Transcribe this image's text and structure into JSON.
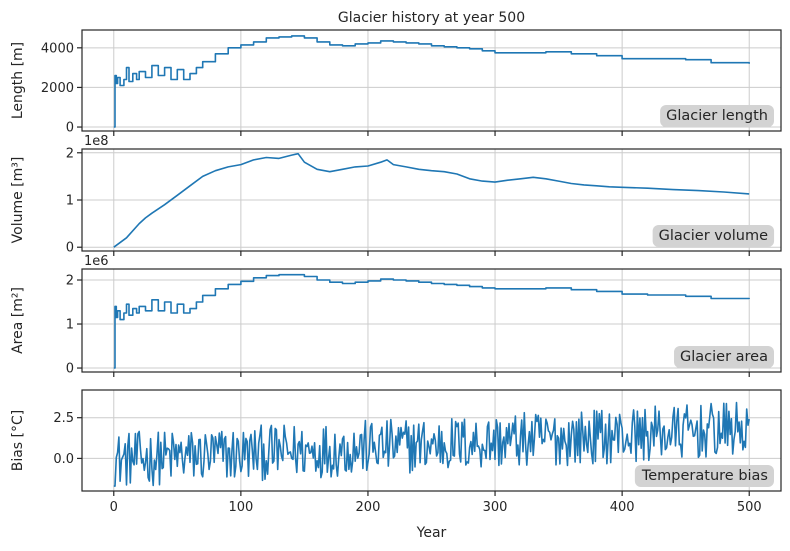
{
  "figure": {
    "title": "Glacier history at year 500",
    "xlabel": "Year",
    "x_ticks": [
      0,
      100,
      200,
      300,
      400,
      500
    ],
    "xlim": [
      -25,
      525
    ],
    "line_color": "#1f77b4",
    "grid_color": "#cccccc",
    "badge_color": "#d3d3d3"
  },
  "chart_data": [
    {
      "type": "line",
      "panel": "length",
      "badge": "Glacier length",
      "ylabel": "Length [m]",
      "ylim": [
        -200,
        4900
      ],
      "yticks": [
        0,
        2000,
        4000
      ],
      "ytick_labels": [
        "0",
        "2000",
        "4000"
      ],
      "offset_label": "",
      "grid": true,
      "style": "step",
      "x": [
        0,
        1,
        2,
        3,
        5,
        8,
        10,
        12,
        15,
        18,
        20,
        25,
        30,
        35,
        40,
        45,
        50,
        55,
        60,
        65,
        70,
        80,
        90,
        100,
        110,
        120,
        130,
        140,
        150,
        160,
        170,
        180,
        190,
        200,
        210,
        220,
        230,
        240,
        250,
        260,
        270,
        280,
        290,
        300,
        320,
        340,
        360,
        380,
        400,
        420,
        450,
        470,
        500
      ],
      "y": [
        0,
        2600,
        2200,
        2500,
        2100,
        2400,
        3000,
        2300,
        2700,
        2400,
        2800,
        2500,
        3100,
        2600,
        3000,
        2400,
        2900,
        2400,
        2700,
        3000,
        3300,
        3700,
        4000,
        4150,
        4300,
        4500,
        4550,
        4600,
        4500,
        4300,
        4150,
        4100,
        4200,
        4250,
        4350,
        4300,
        4250,
        4200,
        4100,
        4050,
        4000,
        3950,
        3850,
        3750,
        3750,
        3800,
        3700,
        3600,
        3450,
        3450,
        3400,
        3250,
        3200
      ]
    },
    {
      "type": "line",
      "panel": "volume",
      "badge": "Glacier volume",
      "ylabel": "Volume [m³]",
      "ylim": [
        -0.08,
        2.08
      ],
      "yticks": [
        0,
        1,
        2
      ],
      "ytick_labels": [
        "0",
        "1",
        "2"
      ],
      "offset_label": "1e8",
      "grid": true,
      "style": "line",
      "x": [
        0,
        10,
        20,
        25,
        30,
        40,
        50,
        60,
        70,
        80,
        90,
        100,
        110,
        120,
        130,
        140,
        145,
        150,
        160,
        170,
        180,
        190,
        200,
        210,
        215,
        220,
        230,
        240,
        250,
        260,
        270,
        280,
        290,
        300,
        310,
        320,
        330,
        340,
        350,
        360,
        370,
        380,
        390,
        400,
        420,
        440,
        460,
        480,
        500
      ],
      "y": [
        0,
        0.2,
        0.5,
        0.62,
        0.72,
        0.9,
        1.1,
        1.3,
        1.5,
        1.62,
        1.7,
        1.75,
        1.85,
        1.9,
        1.88,
        1.95,
        1.98,
        1.8,
        1.65,
        1.6,
        1.65,
        1.7,
        1.72,
        1.8,
        1.85,
        1.75,
        1.7,
        1.65,
        1.62,
        1.6,
        1.55,
        1.45,
        1.4,
        1.38,
        1.42,
        1.45,
        1.48,
        1.45,
        1.4,
        1.35,
        1.32,
        1.3,
        1.28,
        1.27,
        1.25,
        1.22,
        1.2,
        1.17,
        1.13
      ]
    },
    {
      "type": "line",
      "panel": "area",
      "badge": "Glacier area",
      "ylabel": "Area [m²]",
      "ylim": [
        -0.09,
        2.25
      ],
      "yticks": [
        0,
        1,
        2
      ],
      "ytick_labels": [
        "0",
        "1",
        "2"
      ],
      "offset_label": "1e6",
      "grid": true,
      "style": "step",
      "x": [
        0,
        1,
        2,
        3,
        5,
        8,
        10,
        12,
        15,
        18,
        20,
        25,
        30,
        35,
        40,
        45,
        50,
        55,
        60,
        65,
        70,
        80,
        90,
        100,
        110,
        120,
        130,
        140,
        150,
        160,
        170,
        180,
        190,
        200,
        210,
        220,
        230,
        240,
        250,
        260,
        270,
        280,
        290,
        300,
        320,
        340,
        360,
        380,
        400,
        420,
        450,
        470,
        500
      ],
      "y": [
        0,
        1.4,
        1.15,
        1.3,
        1.1,
        1.25,
        1.45,
        1.2,
        1.35,
        1.25,
        1.4,
        1.3,
        1.55,
        1.3,
        1.5,
        1.25,
        1.45,
        1.25,
        1.35,
        1.5,
        1.65,
        1.8,
        1.9,
        1.97,
        2.05,
        2.1,
        2.12,
        2.12,
        2.08,
        2.0,
        1.95,
        1.92,
        1.95,
        1.98,
        2.02,
        2.0,
        1.98,
        1.95,
        1.92,
        1.9,
        1.88,
        1.85,
        1.82,
        1.8,
        1.8,
        1.82,
        1.78,
        1.74,
        1.68,
        1.66,
        1.63,
        1.58,
        1.57
      ]
    },
    {
      "type": "line",
      "panel": "bias",
      "badge": "Temperature bias",
      "ylabel": "Bias [°C]",
      "ylim": [
        -2.0,
        4.2
      ],
      "yticks": [
        0,
        2.5
      ],
      "ytick_labels": [
        "0.0",
        "2.5"
      ],
      "offset_label": "",
      "grid": true,
      "style": "noise",
      "x_range": [
        0,
        500
      ],
      "n_points": 501,
      "trend_start": -0.1,
      "trend_end": 1.8,
      "amplitude": 1.7,
      "min": -1.7,
      "max": 3.8
    }
  ]
}
